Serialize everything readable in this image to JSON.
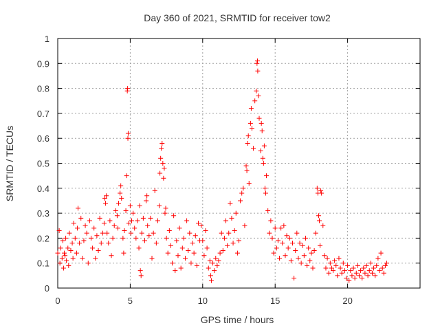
{
  "chart_data": {
    "type": "scatter",
    "title": "Day 360 of 2021, SRMTID for receiver tow2",
    "xlabel": "GPS time / hours",
    "ylabel": "SRMTID / TECUs",
    "xlim": [
      0,
      25
    ],
    "ylim": [
      0,
      1
    ],
    "xticks": [
      0,
      5,
      10,
      15,
      20
    ],
    "xtick_labels": [
      "0",
      "5",
      "10",
      "15",
      "20"
    ],
    "yticks": [
      0,
      0.1,
      0.2,
      0.3,
      0.4,
      0.5,
      0.6,
      0.7,
      0.8,
      0.9,
      1
    ],
    "ytick_labels": [
      "0",
      "0.1",
      "0.2",
      "0.3",
      "0.4",
      "0.5",
      "0.6",
      "0.7",
      "0.8",
      "0.9",
      "1"
    ],
    "grid": true,
    "marker": "plus",
    "color": "#ff0000",
    "series": [
      {
        "name": "SRMTID",
        "points": [
          [
            0.0,
            0.14
          ],
          [
            0.1,
            0.23
          ],
          [
            0.15,
            0.1
          ],
          [
            0.2,
            0.16
          ],
          [
            0.3,
            0.12
          ],
          [
            0.35,
            0.19
          ],
          [
            0.4,
            0.08
          ],
          [
            0.45,
            0.14
          ],
          [
            0.5,
            0.13
          ],
          [
            0.55,
            0.2
          ],
          [
            0.6,
            0.11
          ],
          [
            0.7,
            0.16
          ],
          [
            0.75,
            0.09
          ],
          [
            0.8,
            0.22
          ],
          [
            0.9,
            0.15
          ],
          [
            1.0,
            0.18
          ],
          [
            1.05,
            0.12
          ],
          [
            1.1,
            0.26
          ],
          [
            1.2,
            0.2
          ],
          [
            1.3,
            0.14
          ],
          [
            1.35,
            0.24
          ],
          [
            1.4,
            0.32
          ],
          [
            1.5,
            0.18
          ],
          [
            1.6,
            0.28
          ],
          [
            1.7,
            0.12
          ],
          [
            1.8,
            0.19
          ],
          [
            1.9,
            0.25
          ],
          [
            2.0,
            0.22
          ],
          [
            2.1,
            0.1
          ],
          [
            2.2,
            0.27
          ],
          [
            2.3,
            0.2
          ],
          [
            2.4,
            0.16
          ],
          [
            2.5,
            0.24
          ],
          [
            2.6,
            0.12
          ],
          [
            2.7,
            0.21
          ],
          [
            2.8,
            0.15
          ],
          [
            2.9,
            0.28
          ],
          [
            3.0,
            0.18
          ],
          [
            3.1,
            0.22
          ],
          [
            3.2,
            0.26
          ],
          [
            3.25,
            0.36
          ],
          [
            3.3,
            0.34
          ],
          [
            3.35,
            0.37
          ],
          [
            3.4,
            0.22
          ],
          [
            3.5,
            0.18
          ],
          [
            3.6,
            0.27
          ],
          [
            3.7,
            0.13
          ],
          [
            3.8,
            0.2
          ],
          [
            3.9,
            0.25
          ],
          [
            4.0,
            0.31
          ],
          [
            4.1,
            0.29
          ],
          [
            4.15,
            0.24
          ],
          [
            4.2,
            0.34
          ],
          [
            4.3,
            0.38
          ],
          [
            4.35,
            0.41
          ],
          [
            4.4,
            0.36
          ],
          [
            4.5,
            0.2
          ],
          [
            4.55,
            0.14
          ],
          [
            4.6,
            0.23
          ],
          [
            4.7,
            0.31
          ],
          [
            4.75,
            0.45
          ],
          [
            4.8,
            0.79
          ],
          [
            4.82,
            0.8
          ],
          [
            4.84,
            0.6
          ],
          [
            4.86,
            0.62
          ],
          [
            4.9,
            0.26
          ],
          [
            5.0,
            0.33
          ],
          [
            5.05,
            0.22
          ],
          [
            5.1,
            0.27
          ],
          [
            5.2,
            0.3
          ],
          [
            5.3,
            0.24
          ],
          [
            5.4,
            0.2
          ],
          [
            5.5,
            0.27
          ],
          [
            5.6,
            0.16
          ],
          [
            5.65,
            0.33
          ],
          [
            5.7,
            0.07
          ],
          [
            5.75,
            0.05
          ],
          [
            5.8,
            0.22
          ],
          [
            5.9,
            0.28
          ],
          [
            6.0,
            0.19
          ],
          [
            6.1,
            0.35
          ],
          [
            6.15,
            0.37
          ],
          [
            6.2,
            0.25
          ],
          [
            6.3,
            0.21
          ],
          [
            6.4,
            0.28
          ],
          [
            6.5,
            0.12
          ],
          [
            6.6,
            0.22
          ],
          [
            6.7,
            0.39
          ],
          [
            6.8,
            0.18
          ],
          [
            6.9,
            0.27
          ],
          [
            7.0,
            0.33
          ],
          [
            7.05,
            0.46
          ],
          [
            7.1,
            0.52
          ],
          [
            7.15,
            0.56
          ],
          [
            7.2,
            0.58
          ],
          [
            7.25,
            0.5
          ],
          [
            7.3,
            0.44
          ],
          [
            7.35,
            0.48
          ],
          [
            7.4,
            0.3
          ],
          [
            7.45,
            0.32
          ],
          [
            7.5,
            0.2
          ],
          [
            7.6,
            0.14
          ],
          [
            7.7,
            0.23
          ],
          [
            7.8,
            0.17
          ],
          [
            7.9,
            0.1
          ],
          [
            8.0,
            0.29
          ],
          [
            8.1,
            0.07
          ],
          [
            8.2,
            0.19
          ],
          [
            8.3,
            0.13
          ],
          [
            8.4,
            0.24
          ],
          [
            8.5,
            0.08
          ],
          [
            8.6,
            0.16
          ],
          [
            8.7,
            0.2
          ],
          [
            8.8,
            0.12
          ],
          [
            8.9,
            0.27
          ],
          [
            9.0,
            0.15
          ],
          [
            9.1,
            0.22
          ],
          [
            9.2,
            0.1
          ],
          [
            9.3,
            0.18
          ],
          [
            9.4,
            0.14
          ],
          [
            9.5,
            0.21
          ],
          [
            9.6,
            0.09
          ],
          [
            9.7,
            0.26
          ],
          [
            9.8,
            0.19
          ],
          [
            9.9,
            0.25
          ],
          [
            10.0,
            0.19
          ],
          [
            10.1,
            0.13
          ],
          [
            10.2,
            0.23
          ],
          [
            10.3,
            0.16
          ],
          [
            10.4,
            0.08
          ],
          [
            10.5,
            0.11
          ],
          [
            10.55,
            0.05
          ],
          [
            10.6,
            0.03
          ],
          [
            10.7,
            0.1
          ],
          [
            10.8,
            0.07
          ],
          [
            10.9,
            0.12
          ],
          [
            11.0,
            0.09
          ],
          [
            11.1,
            0.11
          ],
          [
            11.2,
            0.14
          ],
          [
            11.3,
            0.22
          ],
          [
            11.4,
            0.15
          ],
          [
            11.5,
            0.2
          ],
          [
            11.6,
            0.27
          ],
          [
            11.7,
            0.17
          ],
          [
            11.8,
            0.22
          ],
          [
            11.9,
            0.34
          ],
          [
            12.0,
            0.28
          ],
          [
            12.1,
            0.18
          ],
          [
            12.2,
            0.23
          ],
          [
            12.3,
            0.3
          ],
          [
            12.4,
            0.14
          ],
          [
            12.5,
            0.19
          ],
          [
            12.6,
            0.35
          ],
          [
            12.7,
            0.38
          ],
          [
            12.8,
            0.4
          ],
          [
            12.9,
            0.25
          ],
          [
            13.0,
            0.49
          ],
          [
            13.05,
            0.47
          ],
          [
            13.1,
            0.58
          ],
          [
            13.15,
            0.61
          ],
          [
            13.2,
            0.42
          ],
          [
            13.3,
            0.66
          ],
          [
            13.35,
            0.72
          ],
          [
            13.4,
            0.64
          ],
          [
            13.5,
            0.56
          ],
          [
            13.6,
            0.75
          ],
          [
            13.7,
            0.79
          ],
          [
            13.75,
            0.9
          ],
          [
            13.78,
            0.91
          ],
          [
            13.8,
            0.87
          ],
          [
            13.85,
            0.77
          ],
          [
            13.9,
            0.68
          ],
          [
            14.0,
            0.55
          ],
          [
            14.05,
            0.66
          ],
          [
            14.1,
            0.63
          ],
          [
            14.15,
            0.52
          ],
          [
            14.2,
            0.5
          ],
          [
            14.25,
            0.57
          ],
          [
            14.3,
            0.4
          ],
          [
            14.35,
            0.38
          ],
          [
            14.4,
            0.45
          ],
          [
            14.5,
            0.31
          ],
          [
            14.6,
            0.22
          ],
          [
            14.7,
            0.27
          ],
          [
            14.8,
            0.2
          ],
          [
            14.9,
            0.14
          ],
          [
            15.0,
            0.24
          ],
          [
            15.1,
            0.16
          ],
          [
            15.2,
            0.19
          ],
          [
            15.3,
            0.12
          ],
          [
            15.4,
            0.24
          ],
          [
            15.5,
            0.18
          ],
          [
            15.6,
            0.25
          ],
          [
            15.7,
            0.13
          ],
          [
            15.8,
            0.21
          ],
          [
            15.9,
            0.16
          ],
          [
            16.0,
            0.2
          ],
          [
            16.1,
            0.11
          ],
          [
            16.2,
            0.18
          ],
          [
            16.3,
            0.04
          ],
          [
            16.4,
            0.15
          ],
          [
            16.5,
            0.22
          ],
          [
            16.6,
            0.12
          ],
          [
            16.7,
            0.18
          ],
          [
            16.8,
            0.1
          ],
          [
            16.9,
            0.17
          ],
          [
            17.0,
            0.13
          ],
          [
            17.1,
            0.2
          ],
          [
            17.2,
            0.09
          ],
          [
            17.3,
            0.16
          ],
          [
            17.4,
            0.11
          ],
          [
            17.5,
            0.14
          ],
          [
            17.6,
            0.08
          ],
          [
            17.7,
            0.15
          ],
          [
            17.8,
            0.22
          ],
          [
            17.9,
            0.4
          ],
          [
            17.95,
            0.38
          ],
          [
            18.0,
            0.29
          ],
          [
            18.05,
            0.27
          ],
          [
            18.1,
            0.17
          ],
          [
            18.15,
            0.39
          ],
          [
            18.2,
            0.38
          ],
          [
            18.3,
            0.25
          ],
          [
            18.4,
            0.13
          ],
          [
            18.5,
            0.08
          ],
          [
            18.6,
            0.12
          ],
          [
            18.7,
            0.06
          ],
          [
            18.8,
            0.1
          ],
          [
            18.9,
            0.08
          ],
          [
            19.0,
            0.07
          ],
          [
            19.1,
            0.11
          ],
          [
            19.2,
            0.09
          ],
          [
            19.3,
            0.05
          ],
          [
            19.4,
            0.12
          ],
          [
            19.5,
            0.08
          ],
          [
            19.6,
            0.06
          ],
          [
            19.7,
            0.1
          ],
          [
            19.8,
            0.07
          ],
          [
            19.9,
            0.04
          ],
          [
            20.0,
            0.09
          ],
          [
            20.1,
            0.03
          ],
          [
            20.2,
            0.07
          ],
          [
            20.3,
            0.05
          ],
          [
            20.4,
            0.08
          ],
          [
            20.5,
            0.04
          ],
          [
            20.6,
            0.06
          ],
          [
            20.7,
            0.09
          ],
          [
            20.8,
            0.05
          ],
          [
            20.9,
            0.07
          ],
          [
            21.0,
            0.04
          ],
          [
            21.1,
            0.08
          ],
          [
            21.2,
            0.06
          ],
          [
            21.3,
            0.09
          ],
          [
            21.4,
            0.05
          ],
          [
            21.5,
            0.07
          ],
          [
            21.6,
            0.1
          ],
          [
            21.7,
            0.06
          ],
          [
            21.8,
            0.08
          ],
          [
            21.9,
            0.05
          ],
          [
            22.0,
            0.09
          ],
          [
            22.1,
            0.12
          ],
          [
            22.2,
            0.07
          ],
          [
            22.3,
            0.14
          ],
          [
            22.4,
            0.08
          ],
          [
            22.5,
            0.06
          ],
          [
            22.6,
            0.09
          ],
          [
            22.7,
            0.1
          ]
        ]
      }
    ]
  }
}
